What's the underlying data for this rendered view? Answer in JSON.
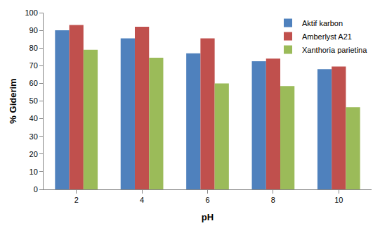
{
  "chart_data": {
    "type": "bar",
    "x_label": "pH",
    "y_label": "% Giderim",
    "categories": [
      "2",
      "4",
      "6",
      "8",
      "10"
    ],
    "series": [
      {
        "name": "Aktif karbon",
        "color": "#4f81bd",
        "values": [
          90,
          85.5,
          77,
          72.5,
          68
        ]
      },
      {
        "name": "Amberlyst A21",
        "color": "#c0504d",
        "values": [
          93,
          92,
          85.5,
          74,
          69.5
        ]
      },
      {
        "name": "Xanthoria parietina",
        "color": "#9bbb59",
        "values": [
          79,
          74.5,
          60,
          58.5,
          46.5
        ]
      }
    ],
    "ylim": [
      0,
      100
    ],
    "yticks": [
      0,
      10,
      20,
      30,
      40,
      50,
      60,
      70,
      80,
      90,
      100
    ],
    "grid": false,
    "legend": "upper right"
  }
}
